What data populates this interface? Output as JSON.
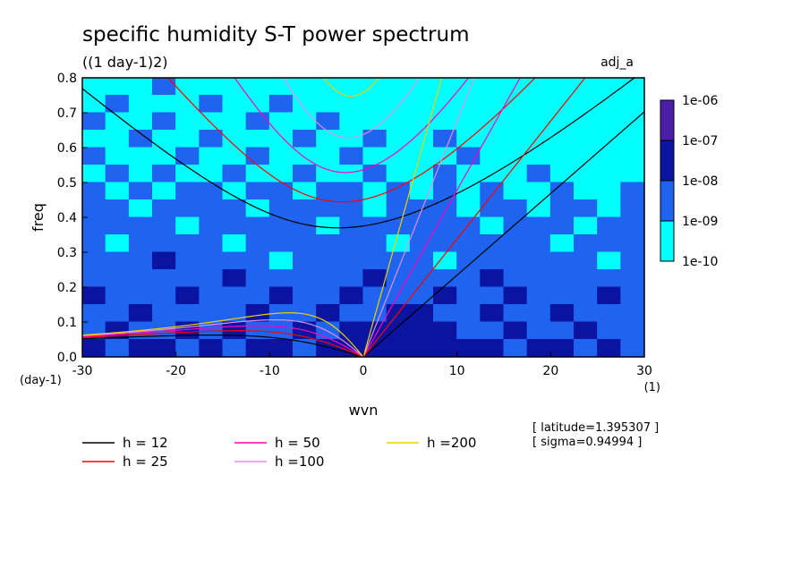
{
  "chart_data": {
    "type": "contour",
    "title": "specific humidity S-T power spectrum",
    "subtitle": "((1 day-1)2)",
    "annotation": "adj_a",
    "xlabel": "wvn",
    "ylabel": "freq",
    "xunit": "(1)",
    "yunit": "(day-1)",
    "notes": [
      "[ latitude=1.395307 ]",
      "[ sigma=0.94994 ]"
    ],
    "xlim": [
      -30,
      30
    ],
    "ylim": [
      0,
      0.8
    ],
    "xticks": [
      -30,
      -20,
      -10,
      0,
      10,
      20,
      30
    ],
    "yticks": [
      {
        "value": 0,
        "label": "0.0"
      },
      0.1,
      0.2,
      0.3,
      0.4,
      0.5,
      0.6,
      0.7,
      0.8
    ],
    "colorbar": {
      "ticks": [
        {
          "value": 1e-10,
          "label": "1e-10"
        },
        {
          "value": 1e-09,
          "label": "1e-09"
        },
        {
          "value": 1e-08,
          "label": "1e-08"
        },
        {
          "value": 1e-07,
          "label": "1e-07"
        },
        {
          "value": 1e-06,
          "label": "1e-06"
        }
      ],
      "colors": [
        "#00ffff",
        "#1e64f0",
        "#0a14a0",
        "#4b1ea5"
      ]
    },
    "field": {
      "z": [
        [
          5e-10,
          5e-10,
          5e-10,
          5e-09,
          5e-10,
          5e-10,
          5e-10,
          5e-10,
          5e-10,
          5e-10,
          5e-10,
          5e-10,
          5e-10,
          5e-10,
          5e-10,
          5e-10,
          5e-10,
          5e-10,
          5e-10,
          5e-10,
          5e-10,
          5e-10,
          5e-10,
          5e-10
        ],
        [
          5e-10,
          5e-09,
          5e-10,
          5e-10,
          5e-10,
          5e-09,
          5e-10,
          5e-10,
          5e-09,
          5e-10,
          5e-10,
          5e-10,
          5e-10,
          5e-10,
          5e-10,
          5e-10,
          5e-10,
          5e-10,
          5e-10,
          5e-10,
          5e-10,
          5e-10,
          5e-10,
          5e-10
        ],
        [
          5e-09,
          5e-10,
          5e-10,
          5e-09,
          5e-10,
          5e-10,
          5e-10,
          5e-09,
          5e-10,
          5e-10,
          5e-09,
          5e-10,
          5e-10,
          5e-10,
          5e-10,
          5e-10,
          5e-10,
          5e-10,
          5e-10,
          5e-10,
          5e-10,
          5e-10,
          5e-10,
          5e-10
        ],
        [
          5e-10,
          5e-10,
          5e-09,
          5e-10,
          5e-10,
          5e-09,
          5e-10,
          5e-10,
          5e-10,
          5e-09,
          5e-10,
          5e-10,
          5e-09,
          5e-10,
          5e-10,
          5e-09,
          5e-10,
          5e-10,
          5e-10,
          5e-10,
          5e-10,
          5e-10,
          5e-10,
          5e-10
        ],
        [
          5e-09,
          5e-10,
          5e-10,
          5e-10,
          5e-09,
          5e-10,
          5e-10,
          5e-09,
          5e-10,
          5e-10,
          5e-10,
          5e-09,
          5e-10,
          5e-10,
          5e-10,
          5e-10,
          5e-09,
          5e-10,
          5e-10,
          5e-10,
          5e-10,
          5e-10,
          5e-10,
          5e-10
        ],
        [
          5e-10,
          5e-09,
          5e-10,
          5e-09,
          5e-10,
          5e-10,
          5e-09,
          5e-10,
          5e-10,
          5e-09,
          5e-10,
          5e-10,
          5e-09,
          5e-10,
          5e-10,
          5e-09,
          5e-10,
          5e-10,
          5e-10,
          5e-09,
          5e-10,
          5e-10,
          5e-10,
          5e-10
        ],
        [
          5e-09,
          5e-10,
          5e-09,
          5e-10,
          5e-09,
          5e-09,
          5e-10,
          5e-09,
          5e-09,
          5e-10,
          5e-09,
          5e-09,
          5e-10,
          5e-09,
          5e-10,
          5e-09,
          5e-10,
          5e-09,
          5e-10,
          5e-10,
          5e-09,
          5e-10,
          5e-10,
          5e-09
        ],
        [
          5e-09,
          5e-09,
          5e-10,
          5e-09,
          5e-09,
          5e-09,
          5e-09,
          5e-10,
          5e-09,
          5e-09,
          5e-09,
          5e-09,
          5e-10,
          5e-09,
          5e-09,
          5e-09,
          5e-10,
          5e-09,
          5e-09,
          5e-10,
          5e-09,
          5e-09,
          5e-10,
          5e-09
        ],
        [
          5e-09,
          5e-09,
          5e-09,
          5e-09,
          5e-10,
          5e-09,
          5e-09,
          5e-09,
          5e-09,
          5e-09,
          5e-10,
          5e-09,
          5e-09,
          5e-09,
          5e-09,
          5e-09,
          5e-09,
          5e-10,
          5e-09,
          5e-09,
          5e-09,
          5e-10,
          5e-09,
          5e-09
        ],
        [
          5e-09,
          5e-10,
          5e-09,
          5e-09,
          5e-09,
          5e-09,
          5e-10,
          5e-09,
          5e-09,
          5e-09,
          5e-09,
          5e-09,
          5e-09,
          5e-10,
          5e-09,
          5e-09,
          5e-09,
          5e-09,
          5e-09,
          5e-09,
          5e-10,
          5e-09,
          5e-09,
          5e-09
        ],
        [
          5e-09,
          5e-09,
          5e-09,
          5e-08,
          5e-09,
          5e-09,
          5e-09,
          5e-09,
          5e-10,
          5e-09,
          5e-09,
          5e-09,
          5e-09,
          5e-09,
          5e-09,
          5e-10,
          5e-09,
          5e-09,
          5e-09,
          5e-09,
          5e-09,
          5e-09,
          5e-10,
          5e-09
        ],
        [
          5e-09,
          5e-09,
          5e-09,
          5e-09,
          5e-09,
          5e-09,
          5e-08,
          5e-09,
          5e-09,
          5e-09,
          5e-09,
          5e-09,
          5e-08,
          5e-09,
          5e-09,
          5e-09,
          5e-09,
          5e-08,
          5e-09,
          5e-09,
          5e-09,
          5e-09,
          5e-09,
          5e-09
        ],
        [
          5e-08,
          5e-09,
          5e-09,
          5e-09,
          5e-08,
          5e-09,
          5e-09,
          5e-09,
          5e-08,
          5e-09,
          5e-09,
          5e-08,
          5e-09,
          5e-09,
          5e-09,
          5e-08,
          5e-09,
          5e-09,
          5e-08,
          5e-09,
          5e-09,
          5e-09,
          5e-08,
          5e-09
        ],
        [
          5e-09,
          5e-09,
          5e-08,
          5e-09,
          5e-09,
          5e-09,
          5e-09,
          5e-08,
          5e-09,
          5e-09,
          5e-08,
          5e-09,
          5e-09,
          5e-08,
          5e-08,
          5e-09,
          5e-09,
          5e-08,
          5e-09,
          5e-09,
          5e-08,
          5e-09,
          5e-09,
          5e-09
        ],
        [
          5e-09,
          5e-08,
          5e-09,
          5e-09,
          5e-08,
          5e-09,
          5e-08,
          5e-09,
          5e-09,
          5e-08,
          5e-09,
          5e-08,
          5e-08,
          5e-08,
          5e-08,
          5e-08,
          5e-09,
          5e-09,
          5e-08,
          5e-09,
          5e-09,
          5e-08,
          5e-09,
          5e-09
        ],
        [
          5e-08,
          5e-09,
          5e-08,
          5e-08,
          5e-09,
          5e-08,
          5e-09,
          5e-08,
          5e-08,
          5e-09,
          5e-08,
          5e-08,
          5e-08,
          5e-08,
          5e-08,
          5e-08,
          5e-08,
          5e-08,
          5e-09,
          5e-08,
          5e-08,
          5e-09,
          5e-08,
          5e-09
        ]
      ]
    },
    "series": [
      {
        "name": "h = 12",
        "color": "#000000",
        "h": 12
      },
      {
        "name": "h = 25",
        "color": "#ff0000",
        "h": 25
      },
      {
        "name": "h = 50",
        "color": "#ff00c0",
        "h": 50
      },
      {
        "name": "h =100",
        "color": "#e08ee0",
        "h": 100
      },
      {
        "name": "h =200",
        "color": "#f0d000",
        "h": 200
      }
    ]
  }
}
